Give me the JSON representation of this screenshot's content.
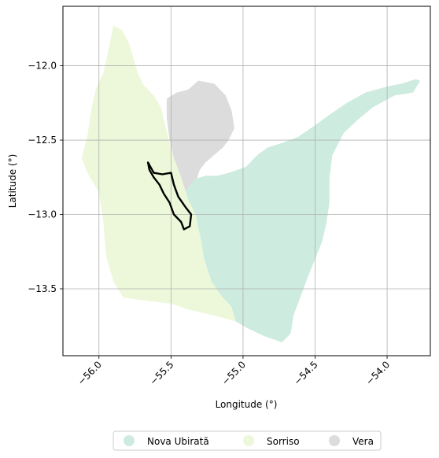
{
  "chart_data": {
    "type": "map",
    "xlabel": "Longitude (°)",
    "ylabel": "Latitude (°)",
    "xlim": [
      -56.25,
      -53.7
    ],
    "ylim": [
      -13.95,
      -11.6
    ],
    "xticks": [
      {
        "value": -56.0,
        "label": "−56.0"
      },
      {
        "value": -55.5,
        "label": "−55.5"
      },
      {
        "value": -55.0,
        "label": "−55.0"
      },
      {
        "value": -54.5,
        "label": "−54.5"
      },
      {
        "value": -54.0,
        "label": "−54.0"
      }
    ],
    "yticks": [
      {
        "value": -12.0,
        "label": "−12.0"
      },
      {
        "value": -12.5,
        "label": "−12.5"
      },
      {
        "value": -13.0,
        "label": "−13.0"
      },
      {
        "value": -13.5,
        "label": "−13.5"
      }
    ],
    "grid": true,
    "legend_position": "bottom-center",
    "regions": [
      {
        "name": "Sorriso",
        "color": "#edf8da",
        "polygon": [
          [
            -55.9,
            -11.73
          ],
          [
            -55.84,
            -11.76
          ],
          [
            -55.79,
            -11.85
          ],
          [
            -55.76,
            -11.95
          ],
          [
            -55.73,
            -12.05
          ],
          [
            -55.69,
            -12.13
          ],
          [
            -55.62,
            -12.2
          ],
          [
            -55.57,
            -12.28
          ],
          [
            -55.52,
            -12.48
          ],
          [
            -55.48,
            -12.62
          ],
          [
            -55.43,
            -12.75
          ],
          [
            -55.38,
            -12.88
          ],
          [
            -55.33,
            -13.0
          ],
          [
            -55.29,
            -13.18
          ],
          [
            -55.27,
            -13.3
          ],
          [
            -55.22,
            -13.45
          ],
          [
            -55.15,
            -13.55
          ],
          [
            -55.08,
            -13.62
          ],
          [
            -55.05,
            -13.72
          ],
          [
            -55.2,
            -13.68
          ],
          [
            -55.38,
            -13.64
          ],
          [
            -55.5,
            -13.6
          ],
          [
            -55.67,
            -13.58
          ],
          [
            -55.83,
            -13.56
          ],
          [
            -55.9,
            -13.45
          ],
          [
            -55.95,
            -13.28
          ],
          [
            -55.97,
            -13.05
          ],
          [
            -56.0,
            -12.85
          ],
          [
            -56.08,
            -12.72
          ],
          [
            -56.12,
            -12.62
          ],
          [
            -56.08,
            -12.47
          ],
          [
            -56.05,
            -12.28
          ],
          [
            -56.02,
            -12.15
          ],
          [
            -55.97,
            -12.05
          ],
          [
            -55.94,
            -11.92
          ]
        ]
      },
      {
        "name": "Vera",
        "color": "#dcdcdc",
        "polygon": [
          [
            -55.31,
            -12.1
          ],
          [
            -55.2,
            -12.12
          ],
          [
            -55.12,
            -12.2
          ],
          [
            -55.08,
            -12.3
          ],
          [
            -55.06,
            -12.42
          ],
          [
            -55.1,
            -12.5
          ],
          [
            -55.14,
            -12.55
          ],
          [
            -55.2,
            -12.6
          ],
          [
            -55.26,
            -12.65
          ],
          [
            -55.3,
            -12.7
          ],
          [
            -55.32,
            -12.76
          ],
          [
            -55.35,
            -12.8
          ],
          [
            -55.4,
            -12.84
          ],
          [
            -55.43,
            -12.75
          ],
          [
            -55.48,
            -12.62
          ],
          [
            -55.51,
            -12.5
          ],
          [
            -55.53,
            -12.35
          ],
          [
            -55.53,
            -12.22
          ],
          [
            -55.46,
            -12.18
          ],
          [
            -55.38,
            -12.16
          ]
        ]
      },
      {
        "name": "Nova Ubiratã",
        "color": "#cdebdf",
        "polygon": [
          [
            -55.4,
            -12.84
          ],
          [
            -55.33,
            -12.76
          ],
          [
            -55.26,
            -12.74
          ],
          [
            -55.18,
            -12.74
          ],
          [
            -55.1,
            -12.72
          ],
          [
            -54.98,
            -12.68
          ],
          [
            -54.9,
            -12.6
          ],
          [
            -54.83,
            -12.55
          ],
          [
            -54.73,
            -12.52
          ],
          [
            -54.62,
            -12.48
          ],
          [
            -54.5,
            -12.4
          ],
          [
            -54.4,
            -12.33
          ],
          [
            -54.28,
            -12.25
          ],
          [
            -54.15,
            -12.18
          ],
          [
            -54.0,
            -12.14
          ],
          [
            -53.9,
            -12.12
          ],
          [
            -53.8,
            -12.09
          ],
          [
            -53.77,
            -12.1
          ],
          [
            -53.82,
            -12.18
          ],
          [
            -53.95,
            -12.2
          ],
          [
            -54.1,
            -12.28
          ],
          [
            -54.2,
            -12.36
          ],
          [
            -54.3,
            -12.45
          ],
          [
            -54.38,
            -12.6
          ],
          [
            -54.4,
            -12.75
          ],
          [
            -54.4,
            -12.92
          ],
          [
            -54.42,
            -13.05
          ],
          [
            -54.45,
            -13.18
          ],
          [
            -54.5,
            -13.3
          ],
          [
            -54.55,
            -13.42
          ],
          [
            -54.6,
            -13.55
          ],
          [
            -54.65,
            -13.68
          ],
          [
            -54.67,
            -13.8
          ],
          [
            -54.73,
            -13.86
          ],
          [
            -54.85,
            -13.82
          ],
          [
            -54.98,
            -13.76
          ],
          [
            -55.05,
            -13.72
          ],
          [
            -55.08,
            -13.62
          ],
          [
            -55.15,
            -13.55
          ],
          [
            -55.22,
            -13.45
          ],
          [
            -55.27,
            -13.3
          ],
          [
            -55.29,
            -13.18
          ],
          [
            -55.33,
            -13.0
          ],
          [
            -55.38,
            -12.9
          ]
        ]
      }
    ],
    "outline": {
      "color": "#000000",
      "polygon": [
        [
          -55.66,
          -12.65
        ],
        [
          -55.62,
          -12.72
        ],
        [
          -55.56,
          -12.73
        ],
        [
          -55.5,
          -12.72
        ],
        [
          -55.48,
          -12.8
        ],
        [
          -55.45,
          -12.88
        ],
        [
          -55.4,
          -12.95
        ],
        [
          -55.36,
          -13.0
        ],
        [
          -55.37,
          -13.08
        ],
        [
          -55.41,
          -13.1
        ],
        [
          -55.43,
          -13.05
        ],
        [
          -55.48,
          -13.0
        ],
        [
          -55.51,
          -12.92
        ],
        [
          -55.55,
          -12.86
        ],
        [
          -55.58,
          -12.8
        ],
        [
          -55.62,
          -12.75
        ],
        [
          -55.65,
          -12.7
        ]
      ]
    }
  },
  "legend": {
    "items": [
      {
        "label": "Nova Ubiratã",
        "color": "#cdebdf"
      },
      {
        "label": "Sorriso",
        "color": "#edf8da"
      },
      {
        "label": "Vera",
        "color": "#dcdcdc"
      }
    ]
  }
}
